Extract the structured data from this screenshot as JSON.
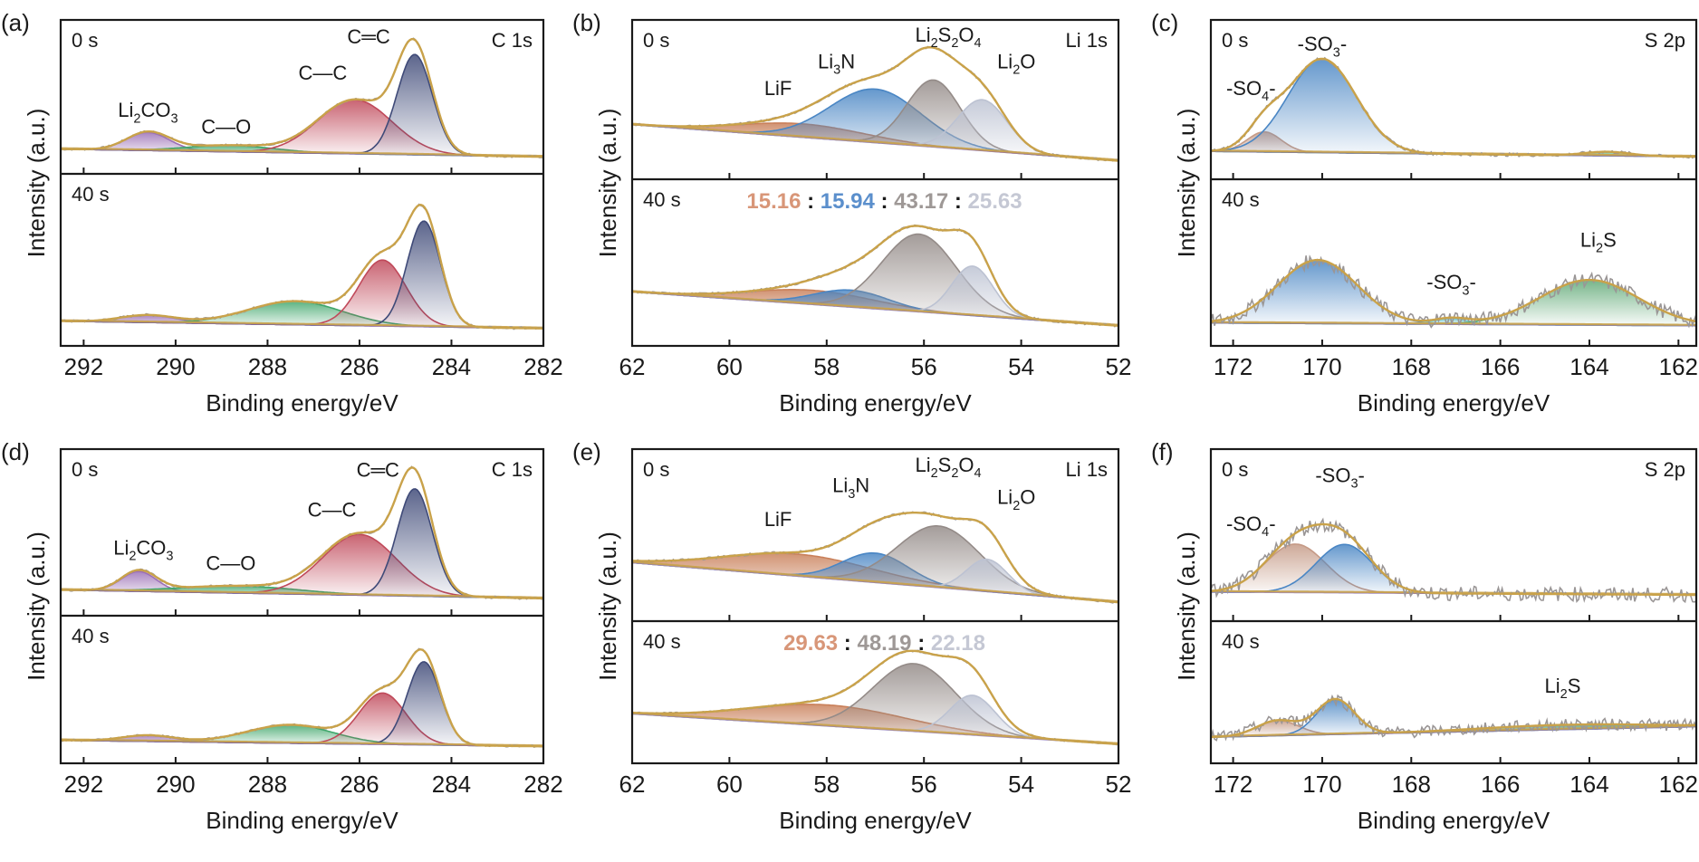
{
  "figure_type": "XPS spectra (6 panels, 0 s and 40 s etching)",
  "chart_data": [
    {
      "id": "a",
      "panel_label": "(a)",
      "type": "area",
      "core_level": "C 1s",
      "xlabel": "Binding energy/eV",
      "ylabel": "Intensity (a.u.)",
      "xlim": [
        292.5,
        282
      ],
      "xticks": [
        292,
        290,
        288,
        286,
        284,
        282
      ],
      "grid": false,
      "subplots": [
        {
          "time": "0 s",
          "baseline": [
            0.08,
            0.02
          ],
          "components": [
            {
              "name": "Li2CO3",
              "label": [
                "Li",
                "2",
                "CO",
                "3"
              ],
              "center": 290.6,
              "fwhm": 1.1,
              "height": 0.14,
              "color": "#9b6fb5"
            },
            {
              "name": "C-O",
              "label": [
                "C—O"
              ],
              "center": 288.8,
              "fwhm": 2.2,
              "height": 0.05,
              "color": "#3fa66a"
            },
            {
              "name": "C-C",
              "label": [
                "C—C"
              ],
              "center": 286.1,
              "fwhm": 1.9,
              "height": 0.42,
              "color": "#c0495a"
            },
            {
              "name": "C=C",
              "label": [
                "C═C"
              ],
              "center": 284.8,
              "fwhm": 0.9,
              "height": 0.78,
              "color": "#3f4a78"
            }
          ],
          "annotations": [
            {
              "text": "Li2CO3",
              "x": 290.6,
              "y": 0.33
            },
            {
              "text": "C—O",
              "x": 288.9,
              "y": 0.2
            },
            {
              "text": "C—C",
              "x": 286.8,
              "y": 0.62
            },
            {
              "text": "C=C",
              "x": 285.8,
              "y": 0.9
            }
          ]
        },
        {
          "time": "40 s",
          "baseline": [
            0.07,
            0.02
          ],
          "components": [
            {
              "name": "Li2CO3",
              "center": 290.6,
              "fwhm": 1.4,
              "height": 0.05,
              "color": "#9b6fb5"
            },
            {
              "name": "C-O",
              "center": 287.4,
              "fwhm": 2.4,
              "height": 0.16,
              "color": "#3fa66a"
            },
            {
              "name": "C-C",
              "center": 285.5,
              "fwhm": 1.2,
              "height": 0.45,
              "color": "#c0495a"
            },
            {
              "name": "C=C",
              "center": 284.6,
              "fwhm": 0.85,
              "height": 0.72,
              "color": "#3f4a78"
            }
          ],
          "annotations": []
        }
      ]
    },
    {
      "id": "b",
      "panel_label": "(b)",
      "type": "area",
      "core_level": "Li 1s",
      "xlabel": "Binding energy/eV",
      "ylabel": "Intensity (a.u.)",
      "xlim": [
        62,
        52
      ],
      "xticks": [
        62,
        60,
        58,
        56,
        54,
        52
      ],
      "grid": false,
      "subplots": [
        {
          "time": "0 s",
          "baseline": [
            0.3,
            0.03
          ],
          "components": [
            {
              "name": "LiF",
              "label": [
                "LiF"
              ],
              "center": 58.5,
              "fwhm": 3.0,
              "height": 0.1,
              "color": "#c9805a"
            },
            {
              "name": "Li3N",
              "label": [
                "Li",
                "3",
                "N"
              ],
              "center": 57.0,
              "fwhm": 2.2,
              "height": 0.4,
              "color": "#4a86c4"
            },
            {
              "name": "Li2S2O4",
              "label": [
                "Li",
                "2",
                "S",
                "2",
                "O",
                "4"
              ],
              "center": 55.8,
              "fwhm": 1.3,
              "height": 0.5,
              "color": "#948b88"
            },
            {
              "name": "Li2O",
              "label": [
                "Li",
                "2",
                "O"
              ],
              "center": 54.8,
              "fwhm": 1.2,
              "height": 0.38,
              "color": "#bcc2d2"
            }
          ],
          "annotations": [
            {
              "text": "LiF",
              "x": 59.0,
              "y": 0.52
            },
            {
              "text": "Li3N",
              "x": 57.8,
              "y": 0.72
            },
            {
              "text": "Li2S2O4",
              "x": 55.5,
              "y": 0.92
            },
            {
              "text": "Li2O",
              "x": 54.1,
              "y": 0.72
            }
          ]
        },
        {
          "time": "40 s",
          "ratio": [
            {
              "value": "15.16",
              "color": "#d89678"
            },
            {
              "value": "15.94",
              "color": "#5b8fcc"
            },
            {
              "value": "43.17",
              "color": "#9e9896"
            },
            {
              "value": "25.63",
              "color": "#c5c8d4"
            }
          ],
          "baseline": [
            0.28,
            0.04
          ],
          "components": [
            {
              "name": "LiF",
              "center": 58.3,
              "fwhm": 3.0,
              "height": 0.1,
              "color": "#c9805a"
            },
            {
              "name": "Li3N",
              "center": 57.5,
              "fwhm": 1.8,
              "height": 0.12,
              "color": "#4a86c4"
            },
            {
              "name": "Li2S2O4",
              "center": 56.1,
              "fwhm": 1.8,
              "height": 0.55,
              "color": "#948b88"
            },
            {
              "name": "Li2O",
              "center": 55.0,
              "fwhm": 1.0,
              "height": 0.35,
              "color": "#bcc2d2"
            }
          ],
          "annotations": []
        }
      ]
    },
    {
      "id": "c",
      "panel_label": "(c)",
      "type": "area",
      "core_level": "S 2p",
      "xlabel": "Binding energy/eV",
      "ylabel": "Intensity (a.u.)",
      "xlim": [
        172.5,
        161.6
      ],
      "xticks": [
        172,
        170,
        168,
        166,
        164,
        162
      ],
      "grid": false,
      "subplots": [
        {
          "time": "0 s",
          "baseline": [
            0.1,
            0.06
          ],
          "components": [
            {
              "name": "-SO4-",
              "label": [
                "-SO",
                "4",
                "-"
              ],
              "center": 171.3,
              "fwhm": 0.9,
              "height": 0.15,
              "color": "#c59a86"
            },
            {
              "name": "-SO3-",
              "label": [
                "-SO",
                "3",
                "-"
              ],
              "center": 170.0,
              "fwhm": 1.8,
              "height": 0.7,
              "color": "#4a86c4"
            },
            {
              "name": "Li2S",
              "center": 163.6,
              "fwhm": 1.2,
              "height": 0.03,
              "color": "#3fa66a"
            }
          ],
          "annotations": [
            {
              "text": "-SO4-",
              "x": 171.6,
              "y": 0.52
            },
            {
              "text": "-SO3-",
              "x": 170.0,
              "y": 0.85
            }
          ]
        },
        {
          "time": "40 s",
          "baseline": [
            0.06,
            0.04
          ],
          "components": [
            {
              "name": "-SO4-",
              "center": 170.1,
              "fwhm": 2.1,
              "height": 0.45,
              "color": "#4a86c4"
            },
            {
              "name": "-SO3-",
              "center": 167.1,
              "fwhm": 0.9,
              "height": 0.04,
              "color": "#7cc7c9"
            },
            {
              "name": "Li2S",
              "center": 164.0,
              "fwhm": 2.6,
              "height": 0.32,
              "color": "#5fa875"
            }
          ],
          "annotations": [
            {
              "text": "-SO3-",
              "x": 167.1,
              "y": 0.3
            },
            {
              "text": "Li2S",
              "x": 163.8,
              "y": 0.6
            }
          ]
        }
      ]
    },
    {
      "id": "d",
      "panel_label": "(d)",
      "type": "area",
      "core_level": "C 1s",
      "xlabel": "Binding energy/eV",
      "ylabel": "Intensity (a.u.)",
      "xlim": [
        292.5,
        282
      ],
      "xticks": [
        292,
        290,
        288,
        286,
        284,
        282
      ],
      "grid": false,
      "subplots": [
        {
          "time": "0 s",
          "baseline": [
            0.08,
            0.02
          ],
          "components": [
            {
              "name": "Li2CO3",
              "center": 290.8,
              "fwhm": 0.9,
              "height": 0.14,
              "color": "#9b6fb5"
            },
            {
              "name": "C-O",
              "center": 288.6,
              "fwhm": 3.0,
              "height": 0.05,
              "color": "#3fa66a"
            },
            {
              "name": "C-C",
              "center": 286.0,
              "fwhm": 1.9,
              "height": 0.43,
              "color": "#c0495a"
            },
            {
              "name": "C=C",
              "center": 284.8,
              "fwhm": 0.9,
              "height": 0.76,
              "color": "#3f4a78"
            }
          ],
          "annotations": [
            {
              "text": "Li2CO3",
              "x": 290.7,
              "y": 0.33
            },
            {
              "text": "C—O",
              "x": 288.8,
              "y": 0.22
            },
            {
              "text": "C—C",
              "x": 286.6,
              "y": 0.6
            },
            {
              "text": "C=C",
              "x": 285.6,
              "y": 0.88
            }
          ]
        },
        {
          "time": "40 s",
          "baseline": [
            0.07,
            0.02
          ],
          "components": [
            {
              "name": "Li2CO3",
              "center": 290.6,
              "fwhm": 1.3,
              "height": 0.05,
              "color": "#9b6fb5"
            },
            {
              "name": "C-O",
              "center": 287.5,
              "fwhm": 2.2,
              "height": 0.15,
              "color": "#3fa66a"
            },
            {
              "name": "C-C",
              "center": 285.5,
              "fwhm": 1.2,
              "height": 0.42,
              "color": "#c0495a"
            },
            {
              "name": "C=C",
              "center": 284.6,
              "fwhm": 0.85,
              "height": 0.68,
              "color": "#3f4a78"
            }
          ],
          "annotations": []
        }
      ]
    },
    {
      "id": "e",
      "panel_label": "(e)",
      "type": "area",
      "core_level": "Li 1s",
      "xlabel": "Binding energy/eV",
      "ylabel": "Intensity (a.u.)",
      "xlim": [
        62,
        52
      ],
      "xticks": [
        62,
        60,
        58,
        56,
        54,
        52
      ],
      "grid": false,
      "subplots": [
        {
          "time": "0 s",
          "baseline": [
            0.3,
            0.03
          ],
          "components": [
            {
              "name": "LiF",
              "center": 58.6,
              "fwhm": 3.6,
              "height": 0.15,
              "color": "#c9805a"
            },
            {
              "name": "Li3N",
              "center": 57.0,
              "fwhm": 1.6,
              "height": 0.2,
              "color": "#4a86c4"
            },
            {
              "name": "Li2S2O4",
              "center": 55.7,
              "fwhm": 2.0,
              "height": 0.42,
              "color": "#948b88"
            },
            {
              "name": "Li2O",
              "center": 54.7,
              "fwhm": 1.0,
              "height": 0.22,
              "color": "#bcc2d2"
            }
          ],
          "annotations": [
            {
              "text": "LiF",
              "x": 59.0,
              "y": 0.55
            },
            {
              "text": "Li3N",
              "x": 57.5,
              "y": 0.78
            },
            {
              "text": "Li2S2O4",
              "x": 55.5,
              "y": 0.92
            },
            {
              "text": "Li2O",
              "x": 54.1,
              "y": 0.7
            }
          ]
        },
        {
          "time": "40 s",
          "ratio": [
            {
              "value": "29.63",
              "color": "#d89678"
            },
            {
              "value": "48.19",
              "color": "#9e9896"
            },
            {
              "value": "22.18",
              "color": "#c5c8d4"
            }
          ],
          "baseline": [
            0.3,
            0.04
          ],
          "components": [
            {
              "name": "LiF",
              "center": 58.0,
              "fwhm": 3.8,
              "height": 0.18,
              "color": "#c9805a"
            },
            {
              "name": "Li2S2O4",
              "center": 56.2,
              "fwhm": 2.0,
              "height": 0.58,
              "color": "#948b88"
            },
            {
              "name": "Li2O",
              "center": 55.0,
              "fwhm": 1.1,
              "height": 0.34,
              "color": "#bcc2d2"
            }
          ],
          "annotations": []
        }
      ]
    },
    {
      "id": "f",
      "panel_label": "(f)",
      "type": "area",
      "core_level": "S 2p",
      "xlabel": "Binding energy/eV",
      "ylabel": "Intensity (a.u.)",
      "xlim": [
        172.5,
        161.6
      ],
      "xticks": [
        172,
        170,
        168,
        166,
        164,
        162
      ],
      "grid": false,
      "subplots": [
        {
          "time": "0 s",
          "baseline": [
            0.1,
            0.08
          ],
          "components": [
            {
              "name": "-SO4-",
              "center": 170.6,
              "fwhm": 1.6,
              "height": 0.33,
              "color": "#c59a86"
            },
            {
              "name": "-SO3-",
              "center": 169.5,
              "fwhm": 1.5,
              "height": 0.33,
              "color": "#4a86c4"
            }
          ],
          "annotations": [
            {
              "text": "-SO4-",
              "x": 171.6,
              "y": 0.52
            },
            {
              "text": "-SO3-",
              "x": 169.6,
              "y": 0.85
            }
          ]
        },
        {
          "time": "40 s",
          "baseline": [
            0.1,
            0.19
          ],
          "components": [
            {
              "name": "-SO4-",
              "center": 171.0,
              "fwhm": 1.1,
              "height": 0.13,
              "color": "#c59a86"
            },
            {
              "name": "-SO3-",
              "center": 169.7,
              "fwhm": 1.0,
              "height": 0.3,
              "color": "#4a86c4"
            },
            {
              "name": "Li2S",
              "center": 164.5,
              "fwhm": 4.5,
              "height": 0.04,
              "color": "#4d9a78"
            }
          ],
          "annotations": [
            {
              "text": "Li2S",
              "x": 164.6,
              "y": 0.48
            }
          ]
        }
      ]
    }
  ],
  "colors": {
    "envelope": "#c9a24a",
    "raw_data": "#9a9696",
    "axis": "#1a1a1a",
    "text": "#1a1a1a"
  }
}
